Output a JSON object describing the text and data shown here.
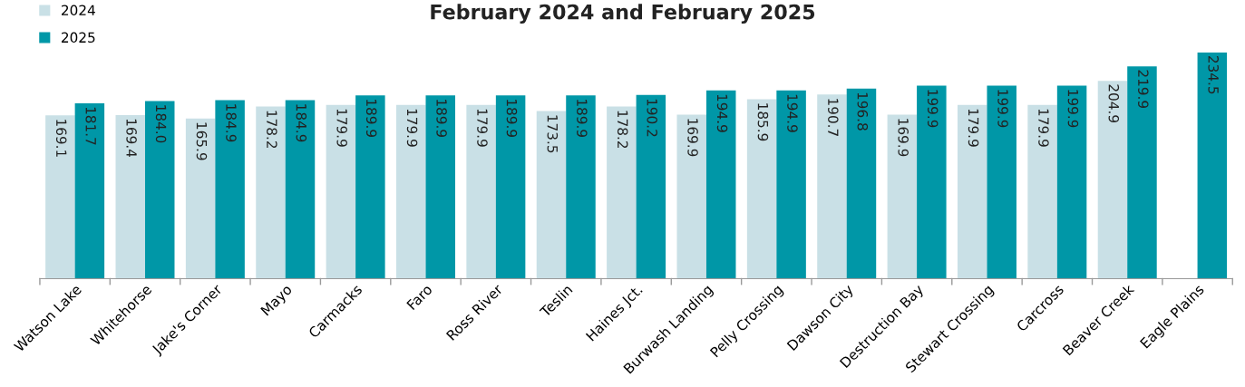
{
  "chart_data": {
    "type": "bar",
    "title": "February 2024 and February 2025",
    "categories": [
      "Watson Lake",
      "Whitehorse",
      "Jake's Corner",
      "Mayo",
      "Carmacks",
      "Faro",
      "Ross River",
      "Teslin",
      "Haines Jct.",
      "Burwash Landing",
      "Pelly Crossing",
      "Dawson City",
      "Destruction Bay",
      "Stewart Crossing",
      "Carcross",
      "Beaver Creek",
      "Eagle Plains"
    ],
    "series": [
      {
        "name": "2024",
        "color": "#c9e0e6",
        "values": [
          169.1,
          169.4,
          165.9,
          178.2,
          179.9,
          179.9,
          179.9,
          173.5,
          178.2,
          169.9,
          185.9,
          190.7,
          169.9,
          179.9,
          179.9,
          204.9,
          null
        ]
      },
      {
        "name": "2025",
        "color": "#0097a7",
        "value_labels": [
          "181.7",
          "184.0",
          "184.9",
          "184.9",
          "189.9",
          "189.9",
          "189.9",
          "189.9",
          "190.2",
          "194.9",
          "194.9",
          "196.8",
          "199.9",
          "199.9",
          "199.9",
          "219.9",
          "234.5"
        ],
        "values": [
          181.7,
          184.0,
          184.9,
          184.9,
          189.9,
          189.9,
          189.9,
          189.9,
          190.2,
          194.9,
          194.9,
          196.8,
          199.9,
          199.9,
          199.9,
          219.9,
          234.5
        ]
      }
    ],
    "ylim": [
      0,
      234.5
    ],
    "data_labels": true,
    "legend": "top left",
    "grid": false,
    "tick_labels": "x"
  }
}
